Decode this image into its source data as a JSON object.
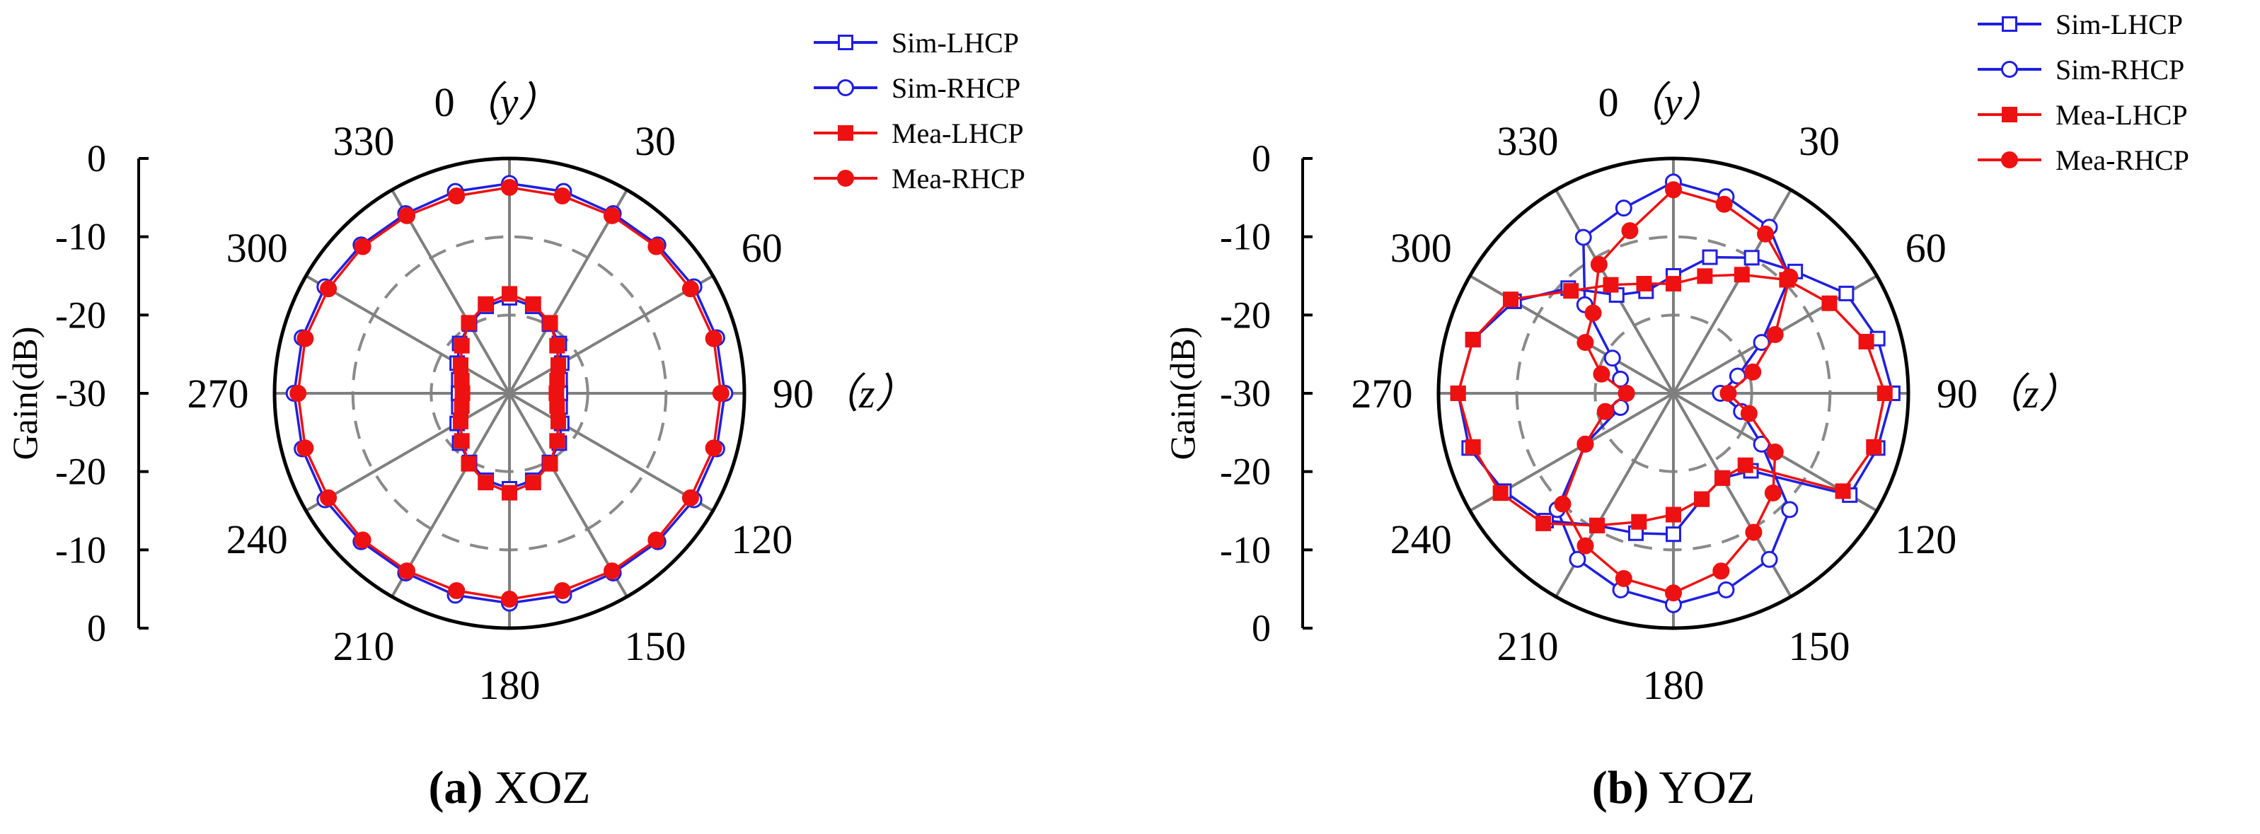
{
  "chart_data": [
    {
      "type": "polar",
      "title": "",
      "caption_letter": "(a)",
      "caption_text": "XOZ",
      "ylabel": "Gain(dB)",
      "r_ticks_upper": [
        "0",
        "-10",
        "-20"
      ],
      "r_ticks_mid": "-30",
      "r_ticks_lower": [
        "-20",
        "-10",
        "0"
      ],
      "rlim": [
        -30,
        0
      ],
      "angle_labels": [
        "0",
        "30",
        "60",
        "90",
        "120",
        "150",
        "180",
        "210",
        "240",
        "270",
        "300",
        "330"
      ],
      "top_axis_letter": "y",
      "right_axis_letter": "z",
      "grid": true,
      "legend_position": "top-right",
      "theta_deg": [
        0,
        15,
        30,
        45,
        60,
        75,
        90,
        105,
        120,
        135,
        150,
        165,
        180,
        195,
        210,
        225,
        240,
        255,
        270,
        285,
        300,
        315,
        330,
        345
      ],
      "series": [
        {
          "name": "Sim-LHCP",
          "color": "#1f1fe0",
          "marker": "square-open",
          "values": [
            -17.8,
            -18.5,
            -19.8,
            -21.0,
            -22.3,
            -23.3,
            -23.5,
            -23.3,
            -22.3,
            -21.0,
            -19.8,
            -18.5,
            -17.8,
            -18.5,
            -19.8,
            -21.0,
            -22.3,
            -23.3,
            -23.5,
            -23.3,
            -22.3,
            -21.0,
            -19.8,
            -18.5
          ]
        },
        {
          "name": "Sim-RHCP",
          "color": "#1f1fe0",
          "marker": "circle-open",
          "values": [
            -3.2,
            -3.3,
            -3.5,
            -3.2,
            -2.8,
            -2.6,
            -2.5,
            -2.6,
            -2.8,
            -3.2,
            -3.5,
            -3.3,
            -3.2,
            -3.3,
            -3.5,
            -3.2,
            -2.8,
            -2.6,
            -2.5,
            -2.6,
            -2.8,
            -3.2,
            -3.5,
            -3.3
          ]
        },
        {
          "name": "Mea-LHCP",
          "color": "#ee1111",
          "marker": "square-filled",
          "values": [
            -17.3,
            -18.2,
            -19.6,
            -21.4,
            -22.8,
            -23.7,
            -24.0,
            -23.7,
            -22.8,
            -21.4,
            -19.6,
            -18.2,
            -17.3,
            -18.2,
            -19.6,
            -21.4,
            -22.8,
            -23.7,
            -24.0,
            -23.7,
            -22.8,
            -21.4,
            -19.6,
            -18.2
          ]
        },
        {
          "name": "Mea-RHCP",
          "color": "#ee1111",
          "marker": "circle-filled",
          "values": [
            -3.7,
            -3.9,
            -3.8,
            -3.5,
            -3.3,
            -3.0,
            -3.0,
            -3.0,
            -3.3,
            -3.5,
            -3.8,
            -3.9,
            -3.7,
            -3.9,
            -3.8,
            -3.5,
            -3.3,
            -3.0,
            -3.0,
            -3.0,
            -3.3,
            -3.5,
            -3.8,
            -3.9
          ]
        }
      ]
    },
    {
      "type": "polar",
      "title": "",
      "caption_letter": "(b)",
      "caption_text": "YOZ",
      "ylabel": "Gain(dB)",
      "r_ticks_upper": [
        "0",
        "-10",
        "-20"
      ],
      "r_ticks_mid": "-30",
      "r_ticks_lower": [
        "-20",
        "-10",
        "0"
      ],
      "rlim": [
        -30,
        0
      ],
      "angle_labels": [
        "0",
        "30",
        "60",
        "90",
        "120",
        "150",
        "180",
        "210",
        "240",
        "270",
        "300",
        "330"
      ],
      "top_axis_letter": "y",
      "right_axis_letter": "z",
      "grid": true,
      "legend_position": "top-right",
      "theta_deg": [
        0,
        15,
        30,
        45,
        60,
        75,
        90,
        105,
        120,
        135,
        150,
        165,
        180,
        195,
        210,
        225,
        240,
        255,
        270,
        285,
        300,
        315,
        330,
        345
      ],
      "series": [
        {
          "name": "Sim-LHCP",
          "color": "#1f1fe0",
          "marker": "square-open",
          "values": [
            -15.0,
            -12.0,
            -10.0,
            -8.0,
            -4.5,
            -3.0,
            -2.0,
            -3.0,
            -4.0,
            -16.0,
            -17.5,
            -16.0,
            -12.0,
            -11.5,
            -10.5,
            -7.0,
            -5.0,
            -3.0,
            -2.5,
            -3.5,
            -6.5,
            -11.0,
            -15.5,
            -16.5
          ]
        },
        {
          "name": "Sim-RHCP",
          "color": "#1f1fe0",
          "marker": "circle-open",
          "values": [
            -3.0,
            -4.0,
            -5.5,
            -9.0,
            -17.0,
            -21.5,
            -24.0,
            -21.0,
            -17.0,
            -9.0,
            -5.5,
            -4.0,
            -3.0,
            -4.0,
            -5.5,
            -9.0,
            -17.0,
            -23.0,
            -24.0,
            -23.0,
            -21.0,
            -14.0,
            -7.0,
            -5.5
          ]
        },
        {
          "name": "Mea-LHCP",
          "color": "#ee1111",
          "marker": "square-filled",
          "values": [
            -16.0,
            -14.5,
            -12.5,
            -9.5,
            -7.0,
            -4.5,
            -3.0,
            -3.5,
            -5.0,
            -17.0,
            -17.5,
            -16.0,
            -14.5,
            -13.0,
            -10.5,
            -6.5,
            -4.5,
            -3.5,
            -2.5,
            -3.5,
            -6.0,
            -11.5,
            -14.0,
            -15.5
          ]
        },
        {
          "name": "Mea-RHCP",
          "color": "#ee1111",
          "marker": "circle-filled",
          "values": [
            -4.0,
            -5.0,
            -6.5,
            -9.0,
            -15.0,
            -19.5,
            -23.0,
            -20.0,
            -15.0,
            -12.0,
            -9.5,
            -6.5,
            -4.5,
            -5.5,
            -7.5,
            -10.0,
            -17.0,
            -21.0,
            -24.0,
            -20.5,
            -17.0,
            -15.5,
            -11.0,
            -8.5
          ]
        }
      ]
    }
  ]
}
